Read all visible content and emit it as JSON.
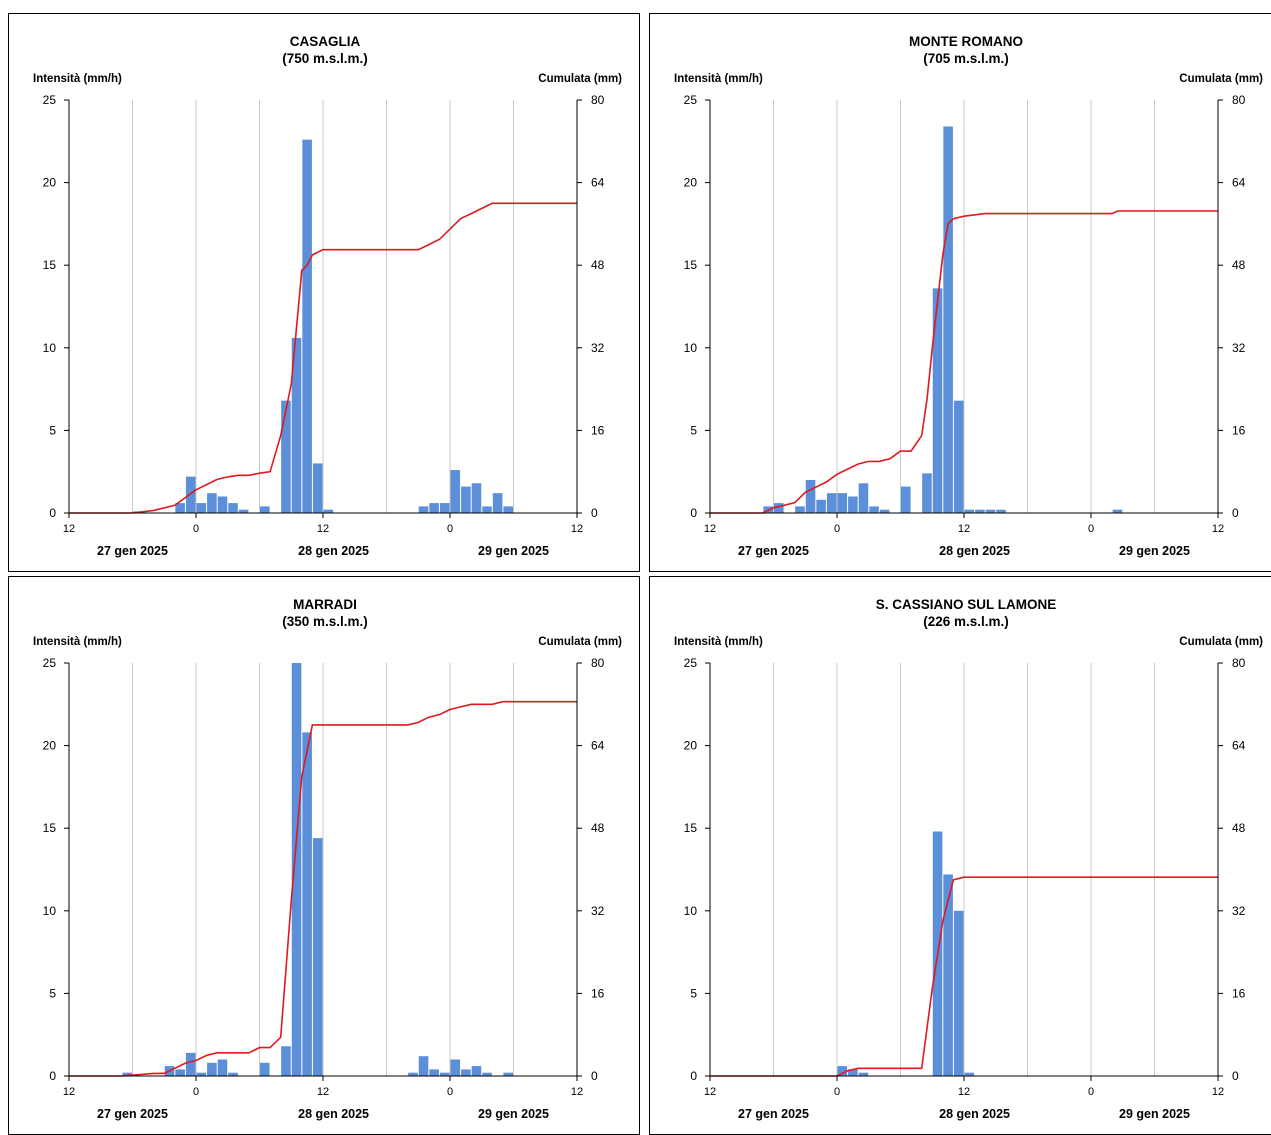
{
  "chart_data": [
    {
      "type": "bar",
      "title": "CASAGLIA",
      "subtitle": "(750 m.s.l.m.)",
      "ylabel_left": "Intensità (mm/h)",
      "ylabel_right": "Cumulata (mm)",
      "ylim": [
        0,
        25
      ],
      "y2lim": [
        0,
        80
      ],
      "yticks": [
        "0",
        "5",
        "10",
        "15",
        "20",
        "25"
      ],
      "y2ticks": [
        "0",
        "16",
        "32",
        "48",
        "64",
        "80"
      ],
      "xlim_hours": [
        0,
        48
      ],
      "xticks": [
        {
          "h": 0,
          "label": "12"
        },
        {
          "h": 12,
          "label": "0"
        },
        {
          "h": 24,
          "label": "12"
        },
        {
          "h": 36,
          "label": "0"
        },
        {
          "h": 48,
          "label": "12"
        }
      ],
      "date_labels": [
        {
          "h": 6,
          "label": "27 gen 2025"
        },
        {
          "h": 25,
          "label": "28 gen 2025"
        },
        {
          "h": 42,
          "label": "29 gen 2025"
        }
      ],
      "bar_colors": [
        "#5b8fd9"
      ],
      "line_color": "#e0191e",
      "bar_series": {
        "name": "Intensità",
        "x_start_hours": [
          6,
          10,
          11,
          12,
          13,
          14,
          15,
          16,
          18,
          20,
          21,
          22,
          23,
          24,
          25,
          33,
          34,
          35,
          36,
          37,
          38,
          39,
          40,
          41
        ],
        "values": [
          0.1,
          0.6,
          2.2,
          0.6,
          1.2,
          1.0,
          0.6,
          0.2,
          0.4,
          6.8,
          10.6,
          22.6,
          3.0,
          0.2,
          0.0,
          0.4,
          0.6,
          0.6,
          2.6,
          1.6,
          1.8,
          0.4,
          1.2,
          0.4
        ]
      },
      "line_series": {
        "name": "Cumulata",
        "x_hours": [
          0,
          6,
          8,
          10,
          11,
          12,
          13,
          14,
          15,
          16,
          17,
          18,
          19,
          20,
          21,
          22,
          22.5,
          23,
          24,
          26,
          33,
          34,
          35,
          36,
          37,
          38,
          39,
          40,
          41,
          42,
          48
        ],
        "values": [
          0,
          0,
          0.5,
          1.5,
          3.0,
          4.5,
          5.5,
          6.5,
          7.0,
          7.3,
          7.3,
          7.7,
          8.0,
          15,
          25,
          47,
          48,
          50,
          51,
          51,
          51,
          52,
          53,
          55,
          57,
          58,
          59,
          60,
          60,
          60,
          60
        ]
      }
    },
    {
      "type": "bar",
      "title": "MONTE ROMANO",
      "subtitle": "(705 m.s.l.m.)",
      "ylabel_left": "Intensità (mm/h)",
      "ylabel_right": "Cumulata (mm)",
      "ylim": [
        0,
        25
      ],
      "y2lim": [
        0,
        80
      ],
      "yticks": [
        "0",
        "5",
        "10",
        "15",
        "20",
        "25"
      ],
      "y2ticks": [
        "0",
        "16",
        "32",
        "48",
        "64",
        "80"
      ],
      "xlim_hours": [
        0,
        48
      ],
      "xticks": [
        {
          "h": 0,
          "label": "12"
        },
        {
          "h": 12,
          "label": "0"
        },
        {
          "h": 24,
          "label": "12"
        },
        {
          "h": 36,
          "label": "0"
        },
        {
          "h": 48,
          "label": "12"
        }
      ],
      "date_labels": [
        {
          "h": 6,
          "label": "27 gen 2025"
        },
        {
          "h": 25,
          "label": "28 gen 2025"
        },
        {
          "h": 42,
          "label": "29 gen 2025"
        }
      ],
      "bar_colors": [
        "#5b8fd9"
      ],
      "line_color": "#e0191e",
      "bar_series": {
        "name": "Intensità",
        "x_start_hours": [
          5,
          6,
          8,
          9,
          10,
          11,
          12,
          13,
          14,
          15,
          16,
          18,
          20,
          21,
          22,
          23,
          24,
          25,
          26,
          27,
          38
        ],
        "values": [
          0.4,
          0.6,
          0.4,
          2.0,
          0.8,
          1.2,
          1.2,
          1.0,
          1.8,
          0.4,
          0.2,
          1.6,
          2.4,
          13.6,
          23.4,
          6.8,
          0.2,
          0.2,
          0.2,
          0.2,
          0.2
        ]
      },
      "line_series": {
        "name": "Cumulata",
        "x_hours": [
          0,
          5,
          6,
          7,
          8,
          9,
          10,
          11,
          12,
          13,
          14,
          15,
          16,
          17,
          18,
          19,
          20,
          20.5,
          21,
          22,
          22.5,
          23,
          24,
          26,
          28,
          38,
          38.5,
          48
        ],
        "values": [
          0,
          0,
          1.0,
          1.5,
          2.0,
          4.0,
          5.0,
          6.0,
          7.5,
          8.5,
          9.5,
          10,
          10,
          10.5,
          12,
          12,
          15,
          22,
          32,
          50,
          56,
          57,
          57.5,
          58,
          58,
          58,
          58.5,
          58.5
        ]
      }
    },
    {
      "type": "bar",
      "title": "MARRADI",
      "subtitle": "(350 m.s.l.m.)",
      "ylabel_left": "Intensità (mm/h)",
      "ylabel_right": "Cumulata (mm)",
      "ylim": [
        0,
        25
      ],
      "y2lim": [
        0,
        80
      ],
      "yticks": [
        "0",
        "5",
        "10",
        "15",
        "20",
        "25"
      ],
      "y2ticks": [
        "0",
        "16",
        "32",
        "48",
        "64",
        "80"
      ],
      "xlim_hours": [
        0,
        48
      ],
      "xticks": [
        {
          "h": 0,
          "label": "12"
        },
        {
          "h": 12,
          "label": "0"
        },
        {
          "h": 24,
          "label": "12"
        },
        {
          "h": 36,
          "label": "0"
        },
        {
          "h": 48,
          "label": "12"
        }
      ],
      "date_labels": [
        {
          "h": 6,
          "label": "27 gen 2025"
        },
        {
          "h": 25,
          "label": "28 gen 2025"
        },
        {
          "h": 42,
          "label": "29 gen 2025"
        }
      ],
      "bar_colors": [
        "#5b8fd9"
      ],
      "line_color": "#e0191e",
      "bar_series": {
        "name": "Intensità",
        "x_start_hours": [
          5,
          9,
          10,
          11,
          12,
          13,
          14,
          15,
          18,
          20,
          21,
          22,
          23,
          32,
          33,
          34,
          35,
          36,
          37,
          38,
          39,
          41
        ],
        "values": [
          0.2,
          0.6,
          0.4,
          1.4,
          0.2,
          0.8,
          1.0,
          0.2,
          0.8,
          1.8,
          25.0,
          20.8,
          14.4,
          0.2,
          1.2,
          0.4,
          0.2,
          1.0,
          0.4,
          0.6,
          0.2,
          0.2
        ]
      },
      "line_series": {
        "name": "Cumulata",
        "x_hours": [
          0,
          5,
          8,
          9,
          10,
          11,
          12,
          13,
          14,
          15,
          16,
          17,
          18,
          19,
          20,
          21,
          22,
          23,
          24,
          31,
          32,
          33,
          34,
          35,
          36,
          37,
          38,
          39,
          40,
          41,
          42,
          48
        ],
        "values": [
          0,
          0,
          0.5,
          0.5,
          1.5,
          2.5,
          3.0,
          4.0,
          4.5,
          4.5,
          4.5,
          4.5,
          5.5,
          5.5,
          7.5,
          34,
          58,
          68,
          68,
          68,
          68,
          68.5,
          69.5,
          70,
          71,
          71.5,
          72,
          72,
          72,
          72.5,
          72.5,
          72.5
        ]
      }
    },
    {
      "type": "bar",
      "title": "S. CASSIANO  SUL LAMONE",
      "subtitle": "(226 m.s.l.m.)",
      "ylabel_left": "Intensità (mm/h)",
      "ylabel_right": "Cumulata (mm)",
      "ylim": [
        0,
        25
      ],
      "y2lim": [
        0,
        80
      ],
      "yticks": [
        "0",
        "5",
        "10",
        "15",
        "20",
        "25"
      ],
      "y2ticks": [
        "0",
        "16",
        "32",
        "48",
        "64",
        "80"
      ],
      "xlim_hours": [
        0,
        48
      ],
      "xticks": [
        {
          "h": 0,
          "label": "12"
        },
        {
          "h": 12,
          "label": "0"
        },
        {
          "h": 24,
          "label": "12"
        },
        {
          "h": 36,
          "label": "0"
        },
        {
          "h": 48,
          "label": "12"
        }
      ],
      "date_labels": [
        {
          "h": 6,
          "label": "27 gen 2025"
        },
        {
          "h": 25,
          "label": "28 gen 2025"
        },
        {
          "h": 42,
          "label": "29 gen 2025"
        }
      ],
      "bar_colors": [
        "#5b8fd9"
      ],
      "line_color": "#e0191e",
      "bar_series": {
        "name": "Intensità",
        "x_start_hours": [
          12,
          13,
          14,
          21,
          22,
          23,
          24
        ],
        "values": [
          0.6,
          0.4,
          0.2,
          14.8,
          12.2,
          10.0,
          0.2
        ]
      },
      "line_series": {
        "name": "Cumulata",
        "x_hours": [
          0,
          12,
          13,
          14,
          15,
          16,
          17,
          18,
          19,
          20,
          21,
          22,
          23,
          24,
          48
        ],
        "values": [
          0,
          0,
          1.0,
          1.5,
          1.5,
          1.5,
          1.5,
          1.5,
          1.5,
          1.5,
          17,
          30,
          38,
          38.5,
          38.5
        ]
      }
    }
  ]
}
